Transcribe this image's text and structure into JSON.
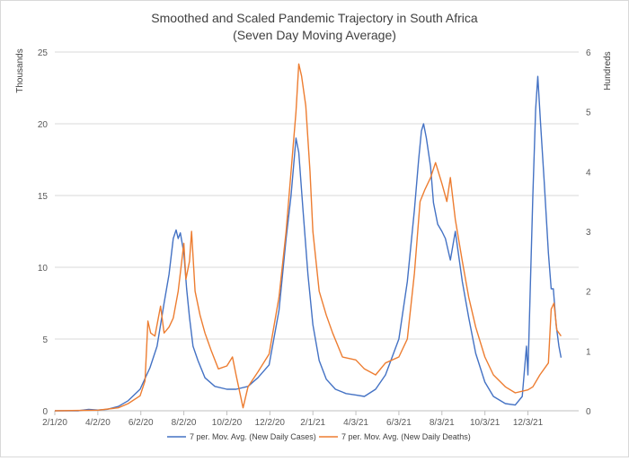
{
  "chart_data": {
    "type": "line",
    "title": "Smoothed and Scaled Pandemic Trajectory in South Africa",
    "subtitle": "(Seven Day Moving Average)",
    "x_axis": {
      "type": "date",
      "ticks": [
        "2/1/20",
        "4/2/20",
        "6/2/20",
        "8/2/20",
        "10/2/20",
        "12/2/20",
        "2/1/21",
        "4/3/21",
        "6/3/21",
        "8/3/21",
        "10/3/21",
        "12/3/21"
      ],
      "range": [
        "2/1/20",
        "2/13/22"
      ]
    },
    "y_axis_left": {
      "label": "Thousands",
      "range": [
        0,
        25
      ],
      "ticks": [
        0,
        5,
        10,
        15,
        20,
        25
      ]
    },
    "y_axis_right": {
      "label": "Hundreds",
      "range": [
        0,
        6
      ],
      "ticks": [
        0,
        1,
        2,
        3,
        4,
        5,
        6
      ]
    },
    "grid": true,
    "legend_position": "bottom",
    "series": [
      {
        "name": "7 per. Mov. Avg. (New Daily Cases)",
        "axis": "left",
        "color": "#4472C4",
        "points": [
          [
            "2/1/20",
            0
          ],
          [
            "3/5/20",
            0
          ],
          [
            "3/20/20",
            0.1
          ],
          [
            "4/2/20",
            0.05
          ],
          [
            "4/15/20",
            0.1
          ],
          [
            "5/1/20",
            0.3
          ],
          [
            "5/15/20",
            0.7
          ],
          [
            "6/1/20",
            1.5
          ],
          [
            "6/15/20",
            3.0
          ],
          [
            "6/25/20",
            4.5
          ],
          [
            "7/5/20",
            7.5
          ],
          [
            "7/12/20",
            9.5
          ],
          [
            "7/18/20",
            12.0
          ],
          [
            "7/22/20",
            12.6
          ],
          [
            "7/25/20",
            12.0
          ],
          [
            "7/28/20",
            12.4
          ],
          [
            "8/2/20",
            11.0
          ],
          [
            "8/6/20",
            8.5
          ],
          [
            "8/10/20",
            6.5
          ],
          [
            "8/15/20",
            4.5
          ],
          [
            "8/22/20",
            3.5
          ],
          [
            "9/1/20",
            2.3
          ],
          [
            "9/15/20",
            1.7
          ],
          [
            "10/2/20",
            1.5
          ],
          [
            "10/15/20",
            1.5
          ],
          [
            "11/1/20",
            1.7
          ],
          [
            "11/15/20",
            2.3
          ],
          [
            "12/1/20",
            3.2
          ],
          [
            "12/15/20",
            7.0
          ],
          [
            "12/25/20",
            12.0
          ],
          [
            "1/1/21",
            15.0
          ],
          [
            "1/8/21",
            19.0
          ],
          [
            "1/12/21",
            18.0
          ],
          [
            "1/18/21",
            14.0
          ],
          [
            "1/25/21",
            9.5
          ],
          [
            "2/1/21",
            6.0
          ],
          [
            "2/10/21",
            3.5
          ],
          [
            "2/20/21",
            2.2
          ],
          [
            "3/5/21",
            1.5
          ],
          [
            "3/20/21",
            1.2
          ],
          [
            "4/3/21",
            1.1
          ],
          [
            "4/15/21",
            1.0
          ],
          [
            "5/1/21",
            1.5
          ],
          [
            "5/15/21",
            2.5
          ],
          [
            "6/3/21",
            5.0
          ],
          [
            "6/15/21",
            9.0
          ],
          [
            "6/25/21",
            14.0
          ],
          [
            "7/1/21",
            17.5
          ],
          [
            "7/5/21",
            19.5
          ],
          [
            "7/8/21",
            20.0
          ],
          [
            "7/12/21",
            19.0
          ],
          [
            "7/18/21",
            17.0
          ],
          [
            "7/22/21",
            14.5
          ],
          [
            "7/28/21",
            13.0
          ],
          [
            "8/3/21",
            12.5
          ],
          [
            "8/8/21",
            12.0
          ],
          [
            "8/15/21",
            10.5
          ],
          [
            "8/22/21",
            12.5
          ],
          [
            "9/1/21",
            9.0
          ],
          [
            "9/10/21",
            6.5
          ],
          [
            "9/20/21",
            4.0
          ],
          [
            "10/3/21",
            2.0
          ],
          [
            "10/15/21",
            1.0
          ],
          [
            "11/1/21",
            0.5
          ],
          [
            "11/15/21",
            0.4
          ],
          [
            "11/25/21",
            1.0
          ],
          [
            "12/1/21",
            4.5
          ],
          [
            "12/3/21",
            2.5
          ],
          [
            "12/6/21",
            8.0
          ],
          [
            "12/10/21",
            15.0
          ],
          [
            "12/14/21",
            21.0
          ],
          [
            "12/17/21",
            23.3
          ],
          [
            "12/21/21",
            20.0
          ],
          [
            "12/26/21",
            16.0
          ],
          [
            "1/1/22",
            11.0
          ],
          [
            "1/5/22",
            8.5
          ],
          [
            "1/8/22",
            8.5
          ],
          [
            "1/12/22",
            6.0
          ],
          [
            "1/16/22",
            4.5
          ],
          [
            "1/19/22",
            3.7
          ]
        ]
      },
      {
        "name": "7 per. Mov. Avg. (New Daily Deaths)",
        "axis": "right",
        "color": "#ED7D31",
        "points": [
          [
            "2/1/20",
            0
          ],
          [
            "4/2/20",
            0.01
          ],
          [
            "5/1/20",
            0.05
          ],
          [
            "5/15/20",
            0.12
          ],
          [
            "6/1/20",
            0.25
          ],
          [
            "6/8/20",
            0.5
          ],
          [
            "6/12/20",
            1.5
          ],
          [
            "6/16/20",
            1.3
          ],
          [
            "6/22/20",
            1.25
          ],
          [
            "6/30/20",
            1.75
          ],
          [
            "7/5/20",
            1.3
          ],
          [
            "7/12/20",
            1.4
          ],
          [
            "7/18/20",
            1.55
          ],
          [
            "7/25/20",
            2.0
          ],
          [
            "8/2/20",
            2.8
          ],
          [
            "8/5/20",
            2.2
          ],
          [
            "8/10/20",
            2.5
          ],
          [
            "8/13/20",
            3.0
          ],
          [
            "8/18/20",
            2.0
          ],
          [
            "8/25/20",
            1.6
          ],
          [
            "9/1/20",
            1.3
          ],
          [
            "9/10/20",
            1.0
          ],
          [
            "9/20/20",
            0.7
          ],
          [
            "10/2/20",
            0.75
          ],
          [
            "10/10/20",
            0.9
          ],
          [
            "10/15/20",
            0.6
          ],
          [
            "10/25/20",
            0.05
          ],
          [
            "11/1/20",
            0.4
          ],
          [
            "11/15/20",
            0.65
          ],
          [
            "12/1/20",
            0.95
          ],
          [
            "12/15/20",
            1.9
          ],
          [
            "12/25/20",
            3.0
          ],
          [
            "1/1/21",
            4.0
          ],
          [
            "1/8/21",
            5.0
          ],
          [
            "1/12/21",
            5.8
          ],
          [
            "1/16/21",
            5.6
          ],
          [
            "1/22/21",
            5.1
          ],
          [
            "1/28/21",
            4.0
          ],
          [
            "2/1/21",
            3.0
          ],
          [
            "2/10/21",
            2.0
          ],
          [
            "2/20/21",
            1.6
          ],
          [
            "3/1/21",
            1.3
          ],
          [
            "3/15/21",
            0.9
          ],
          [
            "4/3/21",
            0.85
          ],
          [
            "4/15/21",
            0.7
          ],
          [
            "5/1/21",
            0.6
          ],
          [
            "5/15/21",
            0.8
          ],
          [
            "6/3/21",
            0.9
          ],
          [
            "6/15/21",
            1.2
          ],
          [
            "6/25/21",
            2.3
          ],
          [
            "7/3/21",
            3.5
          ],
          [
            "7/10/21",
            3.7
          ],
          [
            "7/18/21",
            3.9
          ],
          [
            "7/25/21",
            4.15
          ],
          [
            "8/3/21",
            3.8
          ],
          [
            "8/10/21",
            3.5
          ],
          [
            "8/15/21",
            3.9
          ],
          [
            "8/22/21",
            3.2
          ],
          [
            "9/1/21",
            2.5
          ],
          [
            "9/10/21",
            1.9
          ],
          [
            "9/20/21",
            1.4
          ],
          [
            "10/3/21",
            0.9
          ],
          [
            "10/15/21",
            0.6
          ],
          [
            "11/1/21",
            0.4
          ],
          [
            "11/15/21",
            0.3
          ],
          [
            "12/3/21",
            0.35
          ],
          [
            "12/10/21",
            0.4
          ],
          [
            "12/20/21",
            0.6
          ],
          [
            "1/1/22",
            0.8
          ],
          [
            "1/5/22",
            1.7
          ],
          [
            "1/9/22",
            1.8
          ],
          [
            "1/13/22",
            1.35
          ],
          [
            "1/19/22",
            1.25
          ]
        ]
      }
    ]
  }
}
